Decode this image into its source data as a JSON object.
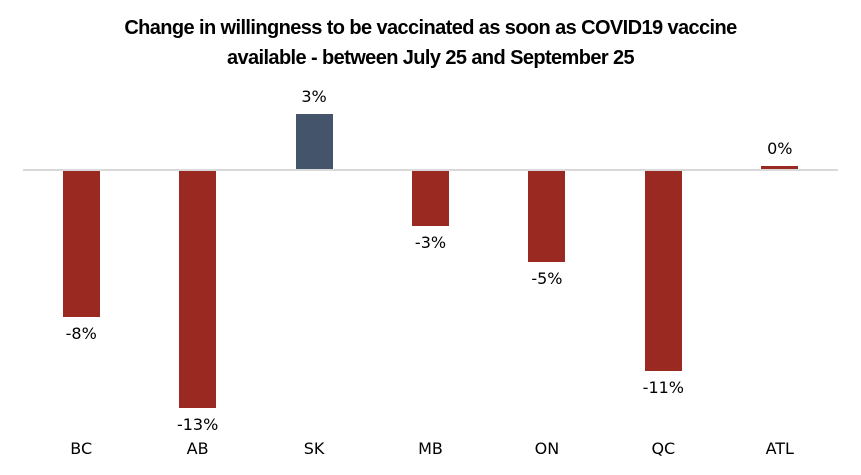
{
  "chart_data": {
    "type": "bar",
    "title": "Change in willingness to be vaccinated as soon as COVID19 vaccine available - between July 25 and September 25",
    "title_lines": [
      "Change in willingness to be vaccinated as soon as COVID19 vaccine",
      "available - between July 25 and September 25"
    ],
    "categories": [
      "BC",
      "AB",
      "SK",
      "MB",
      "ON",
      "QC",
      "ATL"
    ],
    "values": [
      -8,
      -13,
      3,
      -3,
      -5,
      -11,
      0
    ],
    "value_labels": [
      "-8%",
      "-13%",
      "3%",
      "-3%",
      "-5%",
      "-11%",
      "0%"
    ],
    "bar_colors": [
      "#9A2A21",
      "#9A2A21",
      "#44546A",
      "#9A2A21",
      "#9A2A21",
      "#9A2A21",
      "#9A2A21"
    ],
    "xlabel": "",
    "ylabel": "",
    "ylim": [
      -14,
      4
    ],
    "grid": false,
    "legend": null,
    "colors": {
      "negative_bar": "#9A2A21",
      "positive_bar": "#44546A",
      "axis_line": "#D9D9D9",
      "label_text": "#000000",
      "title_text": "#000000",
      "background": "#FFFFFF"
    }
  }
}
